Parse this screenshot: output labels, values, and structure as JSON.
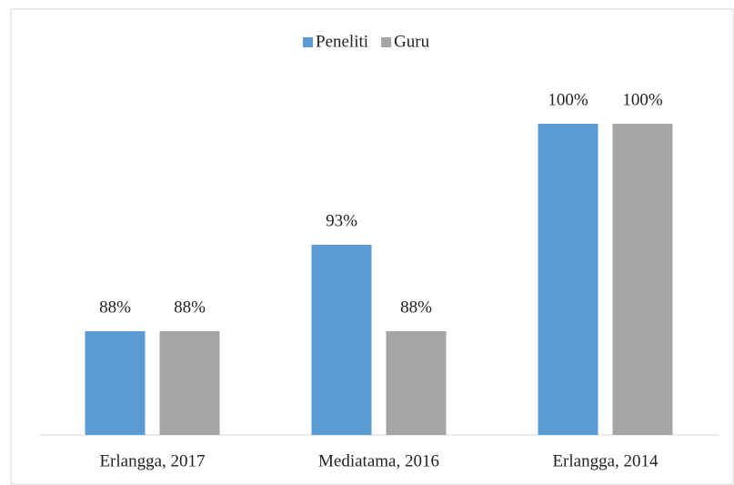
{
  "chart_data": {
    "type": "bar",
    "categories": [
      "Erlangga, 2017",
      "Mediatama, 2016",
      "Erlangga, 2014"
    ],
    "series": [
      {
        "name": "Peneliti",
        "color": "#5b9bd5",
        "values": [
          88,
          93,
          100
        ],
        "value_labels": [
          "88%",
          "93%",
          "100%"
        ]
      },
      {
        "name": "Guru",
        "color": "#a5a5a5",
        "values": [
          88,
          88,
          100
        ],
        "value_labels": [
          "88%",
          "88%",
          "100%"
        ]
      }
    ],
    "ylim": [
      82,
      100
    ],
    "legend": "top"
  }
}
